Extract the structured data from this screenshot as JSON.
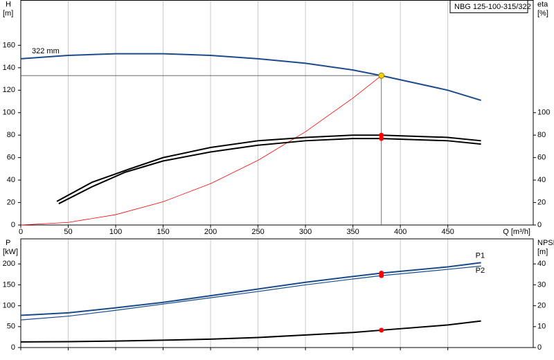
{
  "chart_data": [
    {
      "type": "line",
      "title": "NBG 125-100-315/322",
      "ylabel": "H",
      "yunit": "[m]",
      "y2label": "eta",
      "y2unit": "[%]",
      "xlabel": "Q [m³/h]",
      "xlim": [
        0,
        540
      ],
      "xticks": [
        0,
        50,
        100,
        150,
        200,
        250,
        300,
        350,
        400,
        450
      ],
      "ylim": [
        0,
        200
      ],
      "yticks": [
        0,
        20,
        40,
        60,
        80,
        100,
        120,
        140,
        160
      ],
      "y2lim": [
        0,
        200
      ],
      "y2ticks": [
        0,
        20,
        40,
        60,
        80,
        100
      ],
      "grid": true,
      "xtick_labels": true,
      "series_label_position": "start",
      "marker_x": 380,
      "marker_color": "#ff0000",
      "duty_point": {
        "x": 380,
        "y": 133,
        "color": "#f5d000"
      },
      "series": [
        {
          "name": "322 mm",
          "color": "#1a4b8c",
          "marked": false,
          "x": [
            0,
            50,
            100,
            150,
            200,
            250,
            300,
            350,
            380,
            450,
            485
          ],
          "values": [
            148,
            151,
            152.5,
            152.5,
            151,
            148,
            144,
            138,
            133,
            120,
            111
          ]
        },
        {
          "color": "#ff0000",
          "marked": false,
          "x": [
            0,
            50,
            100,
            150,
            200,
            250,
            300,
            350,
            380
          ],
          "values": [
            0,
            2.3,
            9.2,
            20.7,
            36.8,
            57.6,
            83,
            113,
            133
          ]
        },
        {
          "color": "#000000",
          "marked": true,
          "axis": "y2",
          "x": [
            38,
            75,
            115,
            150,
            200,
            250,
            300,
            350,
            380,
            450,
            485
          ],
          "values": [
            21,
            38,
            50,
            60,
            69,
            75,
            78,
            80,
            80,
            78,
            75
          ]
        },
        {
          "color": "#000000",
          "marked": true,
          "axis": "y2",
          "x": [
            40,
            75,
            110,
            150,
            200,
            250,
            300,
            350,
            380,
            450,
            485
          ],
          "values": [
            19,
            34,
            47,
            57,
            65,
            71,
            75,
            77,
            77,
            75,
            72
          ]
        }
      ]
    },
    {
      "type": "line",
      "ylabel": "P",
      "yunit": "[kW]",
      "y2label": "NPSH",
      "y2unit": "[m]",
      "xlim": [
        0,
        540
      ],
      "xticks": [
        0,
        50,
        100,
        150,
        200,
        250,
        300,
        350,
        400,
        450
      ],
      "ylim": [
        0,
        260
      ],
      "yticks": [
        0,
        50,
        100,
        150,
        200
      ],
      "y2lim": [
        0,
        52
      ],
      "y2ticks": [
        0,
        10,
        20,
        30,
        40
      ],
      "grid": true,
      "xtick_labels": false,
      "series_label_position": "end",
      "marker_x": 380,
      "marker_color": "#ff0000",
      "series": [
        {
          "name": "P1",
          "color": "#1a4b8c",
          "marked": true,
          "x": [
            0,
            50,
            100,
            150,
            200,
            250,
            300,
            350,
            380,
            450,
            485
          ],
          "values": [
            77,
            83,
            95,
            108,
            124,
            140,
            156,
            170,
            178,
            193,
            203
          ]
        },
        {
          "name": "P2",
          "color": "#1a4b8c",
          "marked": true,
          "x": [
            0,
            50,
            100,
            150,
            200,
            250,
            300,
            350,
            380,
            450,
            485
          ],
          "values": [
            66,
            75,
            89,
            104,
            119,
            134,
            150,
            164,
            172,
            187,
            195
          ]
        },
        {
          "color": "#000000",
          "marked": true,
          "axis": "y2",
          "x": [
            0,
            50,
            100,
            150,
            200,
            250,
            300,
            350,
            380,
            450,
            485
          ],
          "values": [
            2.7,
            2.8,
            3.1,
            3.5,
            4,
            4.8,
            6,
            7.2,
            8.3,
            10.8,
            12.7
          ]
        }
      ]
    }
  ]
}
